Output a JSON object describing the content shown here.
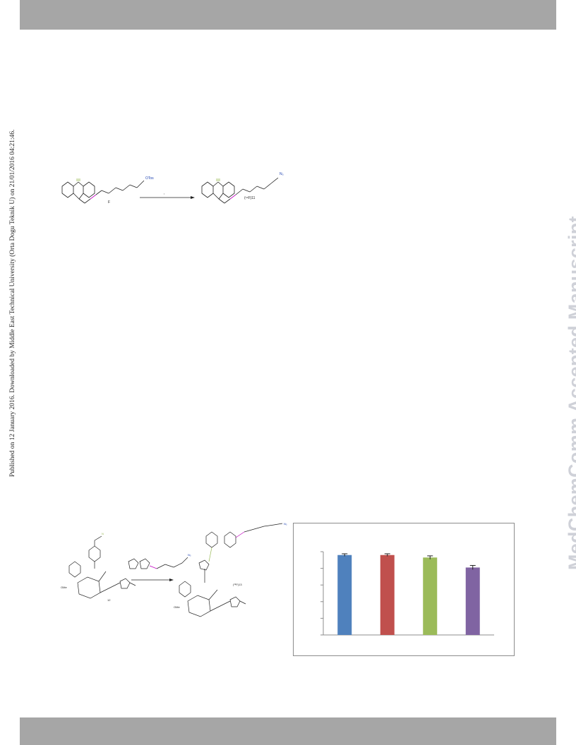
{
  "header": {
    "band_color": "#a6a6a6"
  },
  "footer": {
    "band_color": "#a6a6a6"
  },
  "side_note": "Published on 12 January 2016. Downloaded by Middle East Technical University (Orta Dogu Teknik U) on 21/01/2016 04:21:46.",
  "watermark": "MedChemComm Accepted Manuscript",
  "scheme1": {
    "reagent_label": "OTos",
    "product_label": "N₃",
    "arrow_label": ",",
    "compound_mark": "F",
    "isotope_label": "(¹⁸F)11"
  },
  "scheme2": {
    "azide_label": "N₃",
    "product_azide": "N₃",
    "compound_mark": "12",
    "isotope_label": "(¹⁸F)13",
    "ome_left": "OMe",
    "ome_right": "OMe"
  },
  "chart_data": {
    "type": "bar",
    "categories": [
      "",
      "",
      "",
      ""
    ],
    "values": [
      96,
      96,
      93,
      81
    ],
    "errors": [
      1.5,
      1.5,
      2,
      2.5
    ],
    "colors": [
      "#4f81bd",
      "#c0504d",
      "#9bbb59",
      "#8064a2"
    ],
    "ylim": [
      0,
      100
    ],
    "yticks": 5,
    "grid": false,
    "title": "",
    "xlabel": "",
    "ylabel": ""
  }
}
